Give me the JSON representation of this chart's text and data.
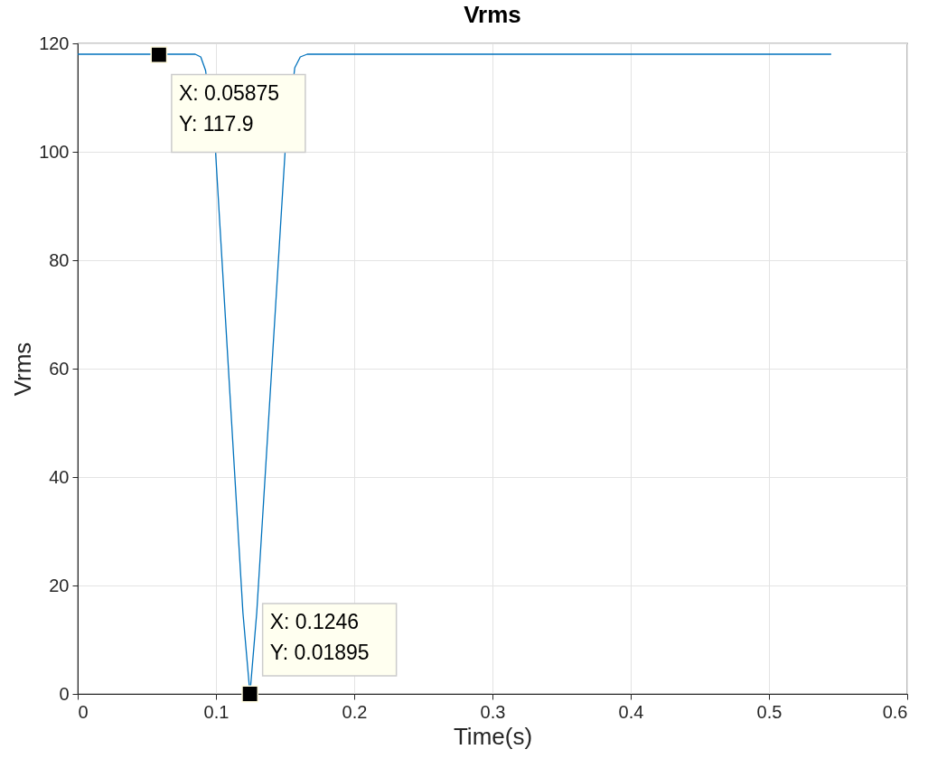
{
  "chart_data": {
    "type": "line",
    "title": "Vrms",
    "xlabel": "Time(s)",
    "ylabel": "Vrms",
    "xlim": [
      0,
      0.6
    ],
    "xticks": [
      0,
      0.1,
      0.2,
      0.3,
      0.4,
      0.5,
      0.6
    ],
    "ylim": [
      0,
      120
    ],
    "yticks": [
      0,
      20,
      40,
      60,
      80,
      100,
      120
    ],
    "grid": true,
    "series": [
      {
        "color": "#0072bd",
        "line_style": "solid",
        "marker": "none",
        "x": [
          0,
          0.085,
          0.089,
          0.0925,
          0.0997,
          0.1195,
          0.1246,
          0.1295,
          0.15,
          0.157,
          0.161,
          0.166,
          0.545
        ],
        "values": [
          118,
          118,
          117.5,
          115,
          100,
          15,
          0,
          15,
          100,
          115.5,
          117.5,
          118,
          118
        ]
      },
      {
        "type": "scatter",
        "color": "#000000",
        "marker": "square",
        "x": [
          0.05875,
          0.1246
        ],
        "values": [
          117.9,
          0
        ]
      }
    ],
    "annotations": [
      {
        "text": "X: 0.05875\nY: 117.9",
        "x": 0.05875,
        "y": 117.9
      },
      {
        "text": "X: 0.1246\nY: 0.01895",
        "x": 0.1246,
        "y": 0.01895
      }
    ]
  }
}
